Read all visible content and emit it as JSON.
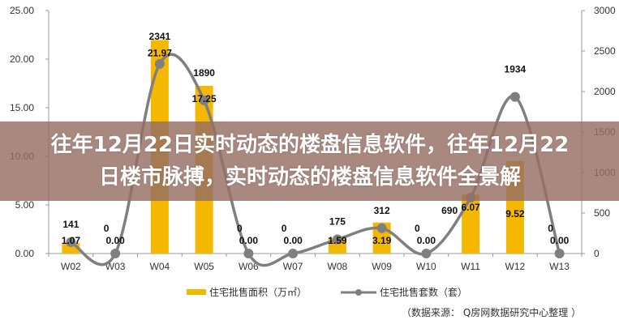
{
  "banner": {
    "title": "往年12月22日实时动态的楼盘信息软件，往年12月22日楼市脉搏，实时动态的楼盘信息软件全景解"
  },
  "source": "（数据来源： Q房网数据研究中心整理 ）",
  "colors": {
    "bar": "#F5B800",
    "line": "#7F7F7F"
  },
  "chart_data": {
    "type": "bar+line",
    "categories": [
      "W02",
      "W03",
      "W04",
      "W05",
      "W06",
      "W07",
      "W08",
      "W09",
      "W10",
      "W11",
      "W12",
      "W13"
    ],
    "series": [
      {
        "name": "住宅批售面积（万㎡）",
        "type": "bar",
        "axis": "left",
        "values": [
          1.07,
          0.0,
          21.97,
          17.25,
          0.0,
          0.0,
          1.59,
          3.19,
          0.0,
          6.07,
          9.52,
          0.0
        ],
        "labels": [
          "1.07",
          "0.00",
          "21.97",
          "17.25",
          "0.00",
          "0.00",
          "1.59",
          "3.19",
          "0.00",
          "6.07",
          "9.52",
          "0.00"
        ]
      },
      {
        "name": "住宅批售套数（套）",
        "type": "line",
        "axis": "right",
        "values": [
          141,
          0,
          2341,
          1890,
          0,
          0,
          175,
          312,
          0,
          690,
          1934,
          0
        ],
        "labels": [
          "141",
          "0",
          "2341",
          "1890",
          "0",
          "0",
          "175",
          "312",
          "0",
          "690",
          "1934",
          "0"
        ]
      }
    ],
    "left_axis": {
      "ylim": [
        0,
        25
      ],
      "ticks": [
        "0.00",
        "5.00",
        "10.00",
        "15.00",
        "20.00",
        "25.00"
      ]
    },
    "right_axis": {
      "ylim": [
        0,
        3000
      ],
      "ticks": [
        "0",
        "500",
        "1000",
        "1500",
        "2000",
        "2500",
        "3000"
      ]
    },
    "legend_position": "bottom"
  }
}
